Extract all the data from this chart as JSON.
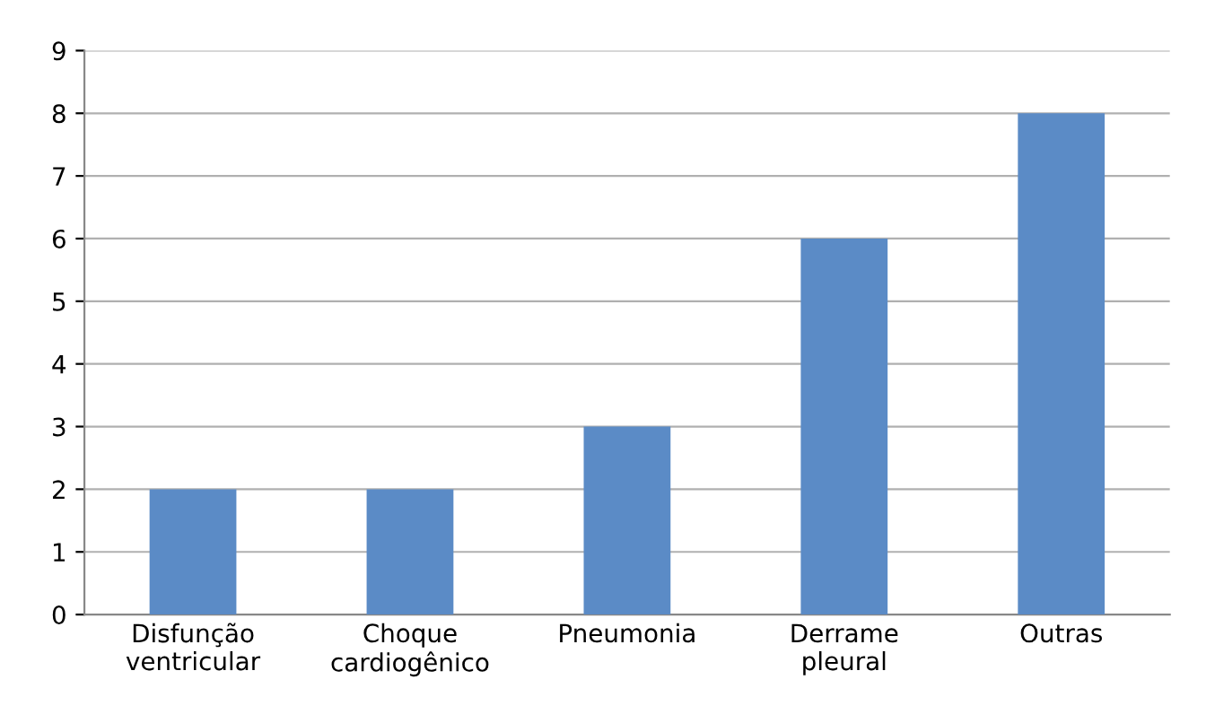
{
  "chart_data": {
    "type": "bar",
    "categories": [
      "Disfunção\nventricular",
      "Choque\ncardiogênico",
      "Pneumonia",
      "Derrame\npleural",
      "Outras"
    ],
    "values": [
      2,
      2,
      3,
      6,
      8
    ],
    "color": "#5b8bc6",
    "ylim": [
      0,
      9
    ],
    "yticks": [
      0,
      1,
      2,
      3,
      4,
      5,
      6,
      7,
      8,
      9
    ],
    "grid": "y"
  }
}
